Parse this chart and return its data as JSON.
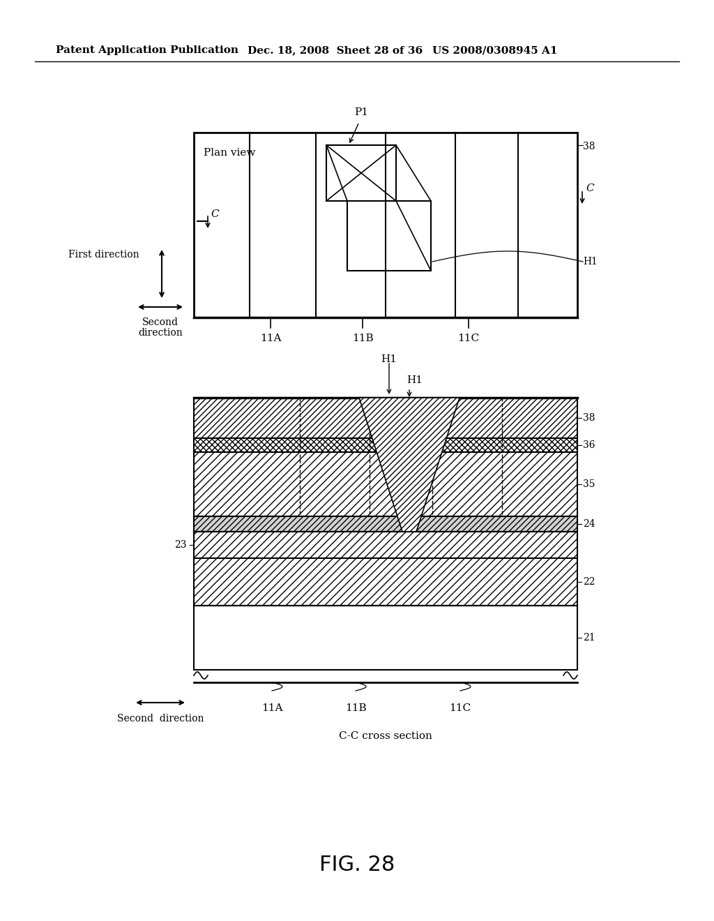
{
  "bg_color": "#ffffff",
  "header_text": "Patent Application Publication",
  "header_date": "Dec. 18, 2008  Sheet 28 of 36",
  "header_patent": "US 2008/0308945 A1",
  "figure_label": "FIG. 28",
  "plan_view_label": "Plan view",
  "cc_section_label": "C-C cross section",
  "first_direction_label": "First direction",
  "second_direction_label": "Second direction",
  "p1_label": "P1",
  "h1_label": "H1",
  "c_label": "C",
  "labels_11": [
    "11A",
    "11B",
    "11C"
  ],
  "layer_labels": [
    "38",
    "36",
    "35",
    "24",
    "23",
    "22",
    "21"
  ]
}
